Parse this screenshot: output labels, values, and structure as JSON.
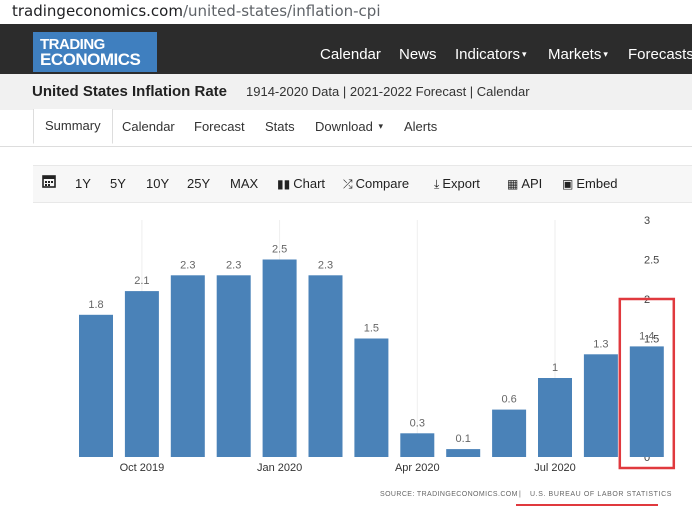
{
  "browser": {
    "url_host": "tradingeconomics.com",
    "url_path": "/united-states/inflation-cpi"
  },
  "logo": {
    "line1": "TRADING",
    "line2": "ECONOMICS"
  },
  "nav": {
    "items": [
      "Calendar",
      "News",
      "Indicators",
      "Markets",
      "Forecasts"
    ]
  },
  "header": {
    "title": "United States Inflation Rate",
    "subtitle": "1914-2020 Data | 2021-2022 Forecast | Calendar"
  },
  "tabs": [
    "Summary",
    "Calendar",
    "Forecast",
    "Stats",
    "Download",
    "Alerts"
  ],
  "toolbar": {
    "ranges": [
      "1Y",
      "5Y",
      "10Y",
      "25Y",
      "MAX"
    ],
    "chart": "Chart",
    "compare": "Compare",
    "export": "Export",
    "api": "API",
    "embed": "Embed"
  },
  "colors": {
    "bar": "#4a82b8",
    "highlight": "#e0393e",
    "navbar": "#2c2c2c",
    "logo": "#3f7fbf"
  },
  "chart_data": {
    "type": "bar",
    "categories": [
      "Sep 2019",
      "Oct 2019",
      "Nov 2019",
      "Dec 2019",
      "Jan 2020",
      "Feb 2020",
      "Mar 2020",
      "Apr 2020",
      "May 2020",
      "Jun 2020",
      "Jul 2020",
      "Aug 2020",
      "Sep 2020"
    ],
    "values": [
      1.8,
      2.1,
      2.3,
      2.3,
      2.5,
      2.3,
      1.5,
      0.3,
      0.1,
      0.6,
      1,
      1.3,
      1.4
    ],
    "value_labels": [
      "1.8",
      "2.1",
      "2.3",
      "2.3",
      "2.5",
      "2.3",
      "1.5",
      "0.3",
      "0.1",
      "0.6",
      "1",
      "1.3",
      "1.4"
    ],
    "x_tick_labels": [
      "Oct 2019",
      "Jan 2020",
      "Apr 2020",
      "Jul 2020"
    ],
    "y_ticks": [
      "0",
      "0.5",
      "1",
      "1.5",
      "2",
      "2.5",
      "3"
    ],
    "ylim": [
      0,
      3
    ],
    "highlighted_index": 12,
    "source_label": "SOURCE: TRADINGECONOMICS.COM",
    "source_agency": "U.S. BUREAU OF LABOR STATISTICS"
  }
}
